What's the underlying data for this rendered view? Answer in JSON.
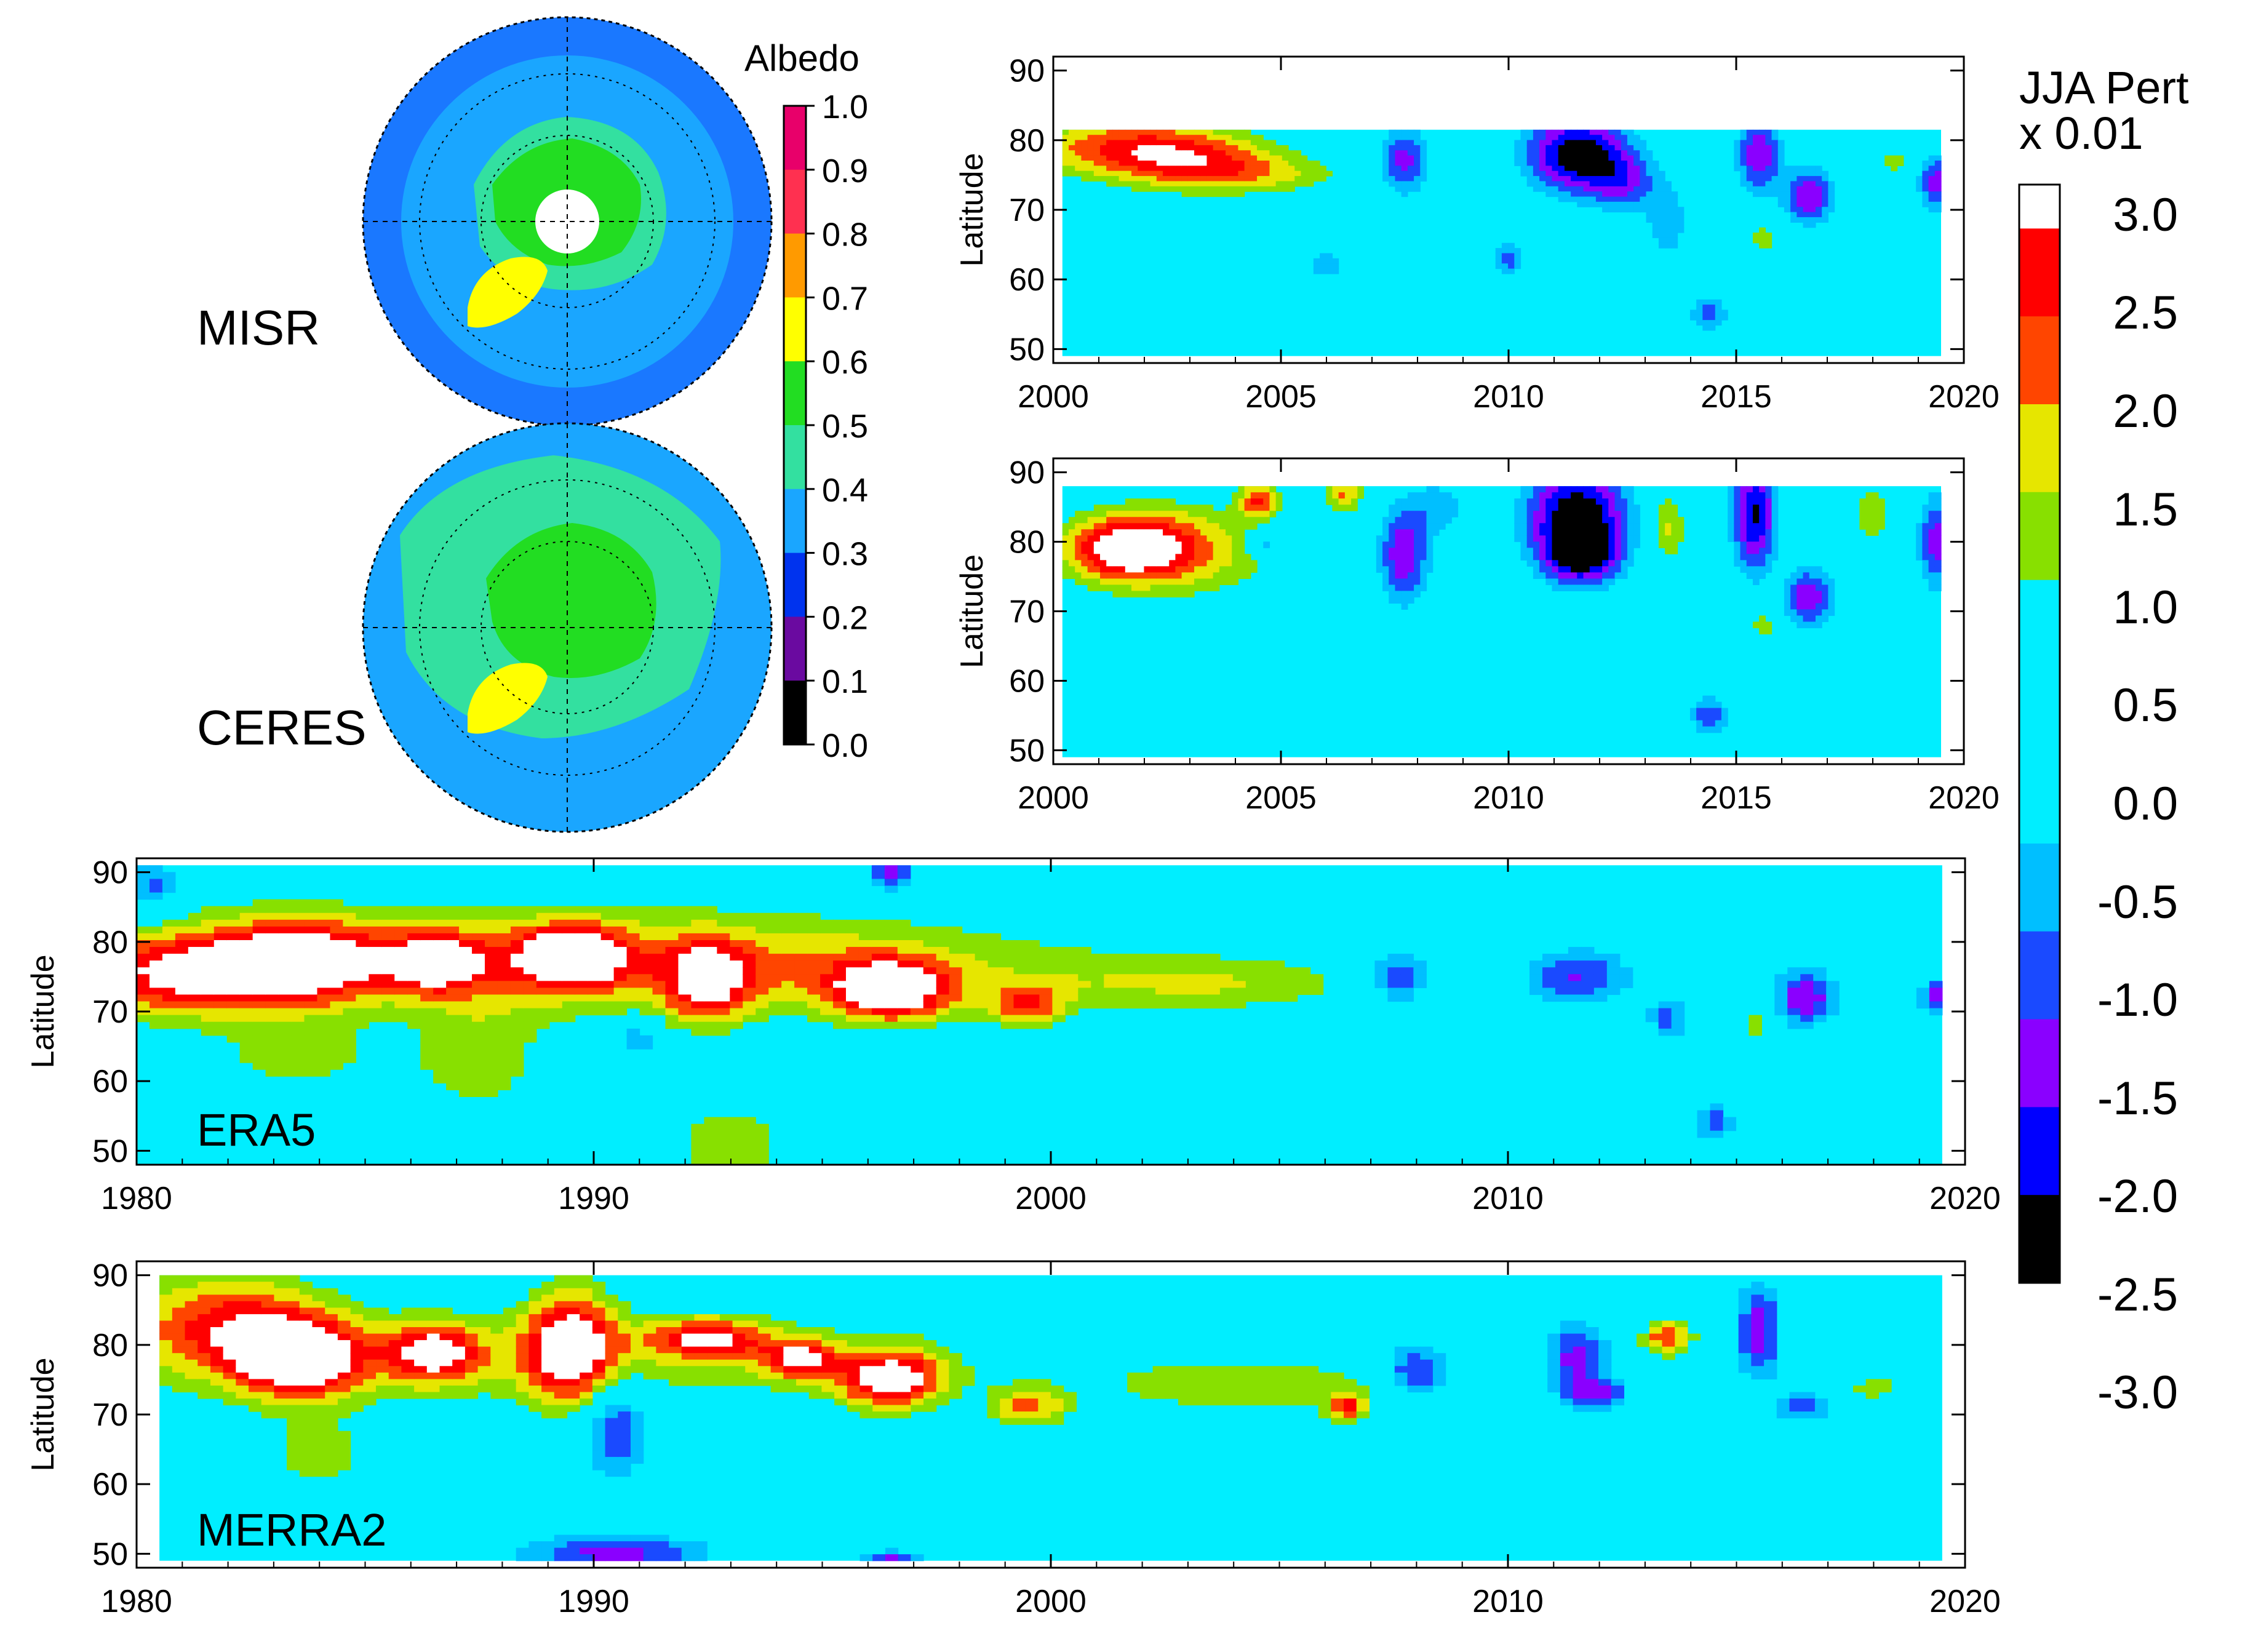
{
  "figure_colors": {
    "levels": [
      "#000000",
      "#0000ff",
      "#8b00ff",
      "#1f3fe0",
      "#00aaff",
      "#00e8ff",
      "#00e8ff",
      "#33cc33",
      "#c0e000",
      "#ff6a00",
      "#ff2020",
      "#ffffff"
    ],
    "background": "#00e8ff"
  },
  "maps": {
    "misr": {
      "label": "MISR"
    },
    "ceres": {
      "label": "CERES"
    },
    "colorbar": {
      "title": "Albedo",
      "ticks": [
        "1.0",
        "0.9",
        "0.8",
        "0.7",
        "0.6",
        "0.5",
        "0.4",
        "0.3",
        "0.2",
        "0.1",
        "0.0"
      ],
      "colors": [
        "#e8006a",
        "#ff3050",
        "#ff9a00",
        "#ffff00",
        "#22dd22",
        "#33e0a0",
        "#1aa6ff",
        "#0033ee",
        "#6a0aa0",
        "#000000"
      ]
    }
  },
  "colorbar": {
    "title_line1": "JJA Pert",
    "title_line2": "x 0.01",
    "ticks": [
      "3.0",
      "2.5",
      "2.0",
      "1.5",
      "1.0",
      "0.5",
      "0.0",
      "-0.5",
      "-1.0",
      "-1.5",
      "-2.0",
      "-2.5",
      "-3.0"
    ],
    "colors": [
      "#ffffff",
      "#ff0000",
      "#ff4500",
      "#e6e600",
      "#88e000",
      "#00eeff",
      "#00eeff",
      "#00eeff",
      "#00bfff",
      "#1a4aff",
      "#8a00ff",
      "#0000ff",
      "#000000"
    ]
  },
  "chart_data": [
    {
      "type": "heatmap",
      "name": "MISR",
      "title": "",
      "xlabel": "",
      "ylabel": "Latitude",
      "xlim": [
        2000,
        2020
      ],
      "ylim": [
        48,
        92
      ],
      "x_ticks": [
        "2000",
        "2005",
        "2010",
        "2015",
        "2020"
      ],
      "y_ticks": [
        "50",
        "60",
        "70",
        "80",
        "90"
      ],
      "data_x_range": [
        2000.2,
        2019.5
      ],
      "data_y_range": [
        49,
        81.5
      ],
      "background_level": 0.0,
      "features": [
        {
          "x": 2001.5,
          "y": 79,
          "sx": 1.6,
          "sy": 3,
          "v": 2.0
        },
        {
          "x": 2003.2,
          "y": 77,
          "sx": 1.4,
          "sy": 3,
          "v": 1.5
        },
        {
          "x": 2004.5,
          "y": 75,
          "sx": 1.5,
          "sy": 2,
          "v": 1.0
        },
        {
          "x": 2007.7,
          "y": 77,
          "sx": 0.4,
          "sy": 3.5,
          "v": -2.0
        },
        {
          "x": 2011.5,
          "y": 78,
          "sx": 0.8,
          "sy": 4,
          "v": -3.2
        },
        {
          "x": 2012.5,
          "y": 74,
          "sx": 0.5,
          "sy": 3,
          "v": -1.5
        },
        {
          "x": 2015.5,
          "y": 78,
          "sx": 0.35,
          "sy": 4,
          "v": -2.2
        },
        {
          "x": 2016.6,
          "y": 72,
          "sx": 0.4,
          "sy": 3,
          "v": -2.2
        },
        {
          "x": 2019.4,
          "y": 74,
          "sx": 0.3,
          "sy": 3,
          "v": -2.0
        },
        {
          "x": 2014.4,
          "y": 55,
          "sx": 0.3,
          "sy": 2,
          "v": -1.5
        },
        {
          "x": 2015.6,
          "y": 66,
          "sx": 0.25,
          "sy": 2,
          "v": 1.0
        },
        {
          "x": 2018.5,
          "y": 77,
          "sx": 0.3,
          "sy": 1.5,
          "v": 1.0
        },
        {
          "x": 2010.0,
          "y": 63,
          "sx": 0.25,
          "sy": 2,
          "v": -1.5
        },
        {
          "x": 2006.0,
          "y": 62,
          "sx": 0.4,
          "sy": 2,
          "v": -1.0
        },
        {
          "x": 2013.5,
          "y": 68,
          "sx": 0.4,
          "sy": 5,
          "v": -1.0
        }
      ]
    },
    {
      "type": "heatmap",
      "name": "CERES",
      "title": "",
      "xlabel": "",
      "ylabel": "Latitude",
      "xlim": [
        2000,
        2020
      ],
      "ylim": [
        48,
        92
      ],
      "x_ticks": [
        "2000",
        "2005",
        "2010",
        "2015",
        "2020"
      ],
      "y_ticks": [
        "50",
        "60",
        "70",
        "80",
        "90"
      ],
      "data_x_range": [
        2000.2,
        2019.5
      ],
      "data_y_range": [
        49,
        88
      ],
      "background_level": 0.0,
      "features": [
        {
          "x": 2001.6,
          "y": 79,
          "sx": 1.0,
          "sy": 3.5,
          "v": 3.1
        },
        {
          "x": 2003.2,
          "y": 79,
          "sx": 1.4,
          "sy": 5,
          "v": 1.3
        },
        {
          "x": 2004.5,
          "y": 86,
          "sx": 0.3,
          "sy": 2,
          "v": 2.0
        },
        {
          "x": 2006.4,
          "y": 87,
          "sx": 0.3,
          "sy": 2,
          "v": 1.8
        },
        {
          "x": 2007.7,
          "y": 78,
          "sx": 0.4,
          "sy": 5,
          "v": -2.2
        },
        {
          "x": 2011.5,
          "y": 84,
          "sx": 0.8,
          "sy": 5,
          "v": -3.2
        },
        {
          "x": 2011.6,
          "y": 78,
          "sx": 0.6,
          "sy": 3,
          "v": -2.5
        },
        {
          "x": 2015.4,
          "y": 84,
          "sx": 0.35,
          "sy": 6,
          "v": -2.8
        },
        {
          "x": 2016.6,
          "y": 72,
          "sx": 0.4,
          "sy": 3,
          "v": -2.2
        },
        {
          "x": 2019.4,
          "y": 80,
          "sx": 0.3,
          "sy": 5,
          "v": -2.0
        },
        {
          "x": 2014.4,
          "y": 55,
          "sx": 0.3,
          "sy": 2,
          "v": -1.7
        },
        {
          "x": 2013.5,
          "y": 82,
          "sx": 0.3,
          "sy": 4,
          "v": 1.4
        },
        {
          "x": 2015.6,
          "y": 68,
          "sx": 0.25,
          "sy": 2,
          "v": 1.1
        },
        {
          "x": 2018.0,
          "y": 84,
          "sx": 0.3,
          "sy": 3,
          "v": 1.2
        },
        {
          "x": 2008.5,
          "y": 85,
          "sx": 0.5,
          "sy": 3,
          "v": -1.0
        },
        {
          "x": 2004.7,
          "y": 80,
          "sx": 0.3,
          "sy": 1.5,
          "v": -1.6
        }
      ]
    },
    {
      "type": "heatmap",
      "name": "ERA5",
      "title": "",
      "xlabel": "",
      "ylabel": "Latitude",
      "xlim": [
        1980,
        2020
      ],
      "ylim": [
        48,
        92
      ],
      "x_ticks": [
        "1980",
        "1990",
        "2000",
        "2010",
        "2020"
      ],
      "y_ticks": [
        "50",
        "60",
        "70",
        "80",
        "90"
      ],
      "data_x_range": [
        1980,
        2019.5
      ],
      "data_y_range": [
        48,
        91
      ],
      "background_level": 0.0,
      "features": [
        {
          "x": 1981.0,
          "y": 75,
          "sx": 1.5,
          "sy": 4,
          "v": 2.2
        },
        {
          "x": 1983.5,
          "y": 77,
          "sx": 1.2,
          "sy": 4,
          "v": 2.8
        },
        {
          "x": 1986.5,
          "y": 77,
          "sx": 0.8,
          "sy": 3,
          "v": 2.2
        },
        {
          "x": 1989.5,
          "y": 78,
          "sx": 0.8,
          "sy": 3,
          "v": 2.9
        },
        {
          "x": 1992.5,
          "y": 74,
          "sx": 0.6,
          "sy": 4,
          "v": 2.2
        },
        {
          "x": 1996.5,
          "y": 73,
          "sx": 0.9,
          "sy": 3,
          "v": 3.0
        },
        {
          "x": 1999.5,
          "y": 71,
          "sx": 0.6,
          "sy": 2,
          "v": 1.8
        },
        {
          "x": 1986.0,
          "y": 78,
          "sx": 8.0,
          "sy": 6,
          "v": 1.2
        },
        {
          "x": 1994.0,
          "y": 76,
          "sx": 5.0,
          "sy": 5,
          "v": 1.1
        },
        {
          "x": 1993.0,
          "y": 51,
          "sx": 1.0,
          "sy": 4,
          "v": 1.2
        },
        {
          "x": 1987.5,
          "y": 63,
          "sx": 1.0,
          "sy": 6,
          "v": 1.1
        },
        {
          "x": 1983.5,
          "y": 63,
          "sx": 1.5,
          "sy": 4,
          "v": 0.9
        },
        {
          "x": 2003.5,
          "y": 74,
          "sx": 2.5,
          "sy": 3,
          "v": 1.1
        },
        {
          "x": 2007.6,
          "y": 75,
          "sx": 0.5,
          "sy": 3,
          "v": -1.8
        },
        {
          "x": 2011.5,
          "y": 75,
          "sx": 0.9,
          "sy": 3,
          "v": -1.8
        },
        {
          "x": 2016.5,
          "y": 72,
          "sx": 0.5,
          "sy": 3,
          "v": -2.2
        },
        {
          "x": 1996.5,
          "y": 90,
          "sx": 0.4,
          "sy": 2,
          "v": -2.0
        },
        {
          "x": 2014.5,
          "y": 54,
          "sx": 0.3,
          "sy": 2,
          "v": -1.6
        },
        {
          "x": 2013.5,
          "y": 69,
          "sx": 0.3,
          "sy": 2,
          "v": -1.6
        },
        {
          "x": 2015.5,
          "y": 68,
          "sx": 0.3,
          "sy": 2,
          "v": 1.2
        },
        {
          "x": 1980.4,
          "y": 88,
          "sx": 0.4,
          "sy": 3,
          "v": -1.6
        },
        {
          "x": 1991.0,
          "y": 66,
          "sx": 0.3,
          "sy": 2,
          "v": -1.5
        },
        {
          "x": 2019.4,
          "y": 72,
          "sx": 0.3,
          "sy": 2,
          "v": -2.0
        }
      ]
    },
    {
      "type": "heatmap",
      "name": "MERRA2",
      "title": "",
      "xlabel": "",
      "ylabel": "Latitude",
      "xlim": [
        1980,
        2020
      ],
      "ylim": [
        48,
        92
      ],
      "x_ticks": [
        "1980",
        "1990",
        "2000",
        "2010",
        "2020"
      ],
      "y_ticks": [
        "50",
        "60",
        "70",
        "80",
        "90"
      ],
      "data_x_range": [
        1980.5,
        2019.5
      ],
      "data_y_range": [
        49,
        90
      ],
      "background_level": 0.0,
      "features": [
        {
          "x": 1982.0,
          "y": 84,
          "sx": 1.5,
          "sy": 5,
          "v": 2.0
        },
        {
          "x": 1983.5,
          "y": 78,
          "sx": 1.0,
          "sy": 4,
          "v": 3.0
        },
        {
          "x": 1986.5,
          "y": 79,
          "sx": 0.7,
          "sy": 3,
          "v": 2.4
        },
        {
          "x": 1989.5,
          "y": 80,
          "sx": 0.7,
          "sy": 6,
          "v": 2.8
        },
        {
          "x": 1992.5,
          "y": 81,
          "sx": 0.9,
          "sy": 2,
          "v": 2.4
        },
        {
          "x": 1994.5,
          "y": 78,
          "sx": 0.6,
          "sy": 2,
          "v": 2.3
        },
        {
          "x": 1996.5,
          "y": 75,
          "sx": 0.8,
          "sy": 3,
          "v": 3.0
        },
        {
          "x": 1999.5,
          "y": 71,
          "sx": 0.6,
          "sy": 2,
          "v": 1.8
        },
        {
          "x": 1990.5,
          "y": 68,
          "sx": 0.5,
          "sy": 5,
          "v": -2.0
        },
        {
          "x": 1990.5,
          "y": 50,
          "sx": 1.5,
          "sy": 2,
          "v": -2.0
        },
        {
          "x": 1996.5,
          "y": 49,
          "sx": 0.5,
          "sy": 1,
          "v": -2.0
        },
        {
          "x": 1988.0,
          "y": 78,
          "sx": 8.0,
          "sy": 5,
          "v": 1.1
        },
        {
          "x": 1984.0,
          "y": 64,
          "sx": 1.0,
          "sy": 4,
          "v": 1.0
        },
        {
          "x": 2004.5,
          "y": 74,
          "sx": 2.5,
          "sy": 3,
          "v": 1.1
        },
        {
          "x": 2008.0,
          "y": 76,
          "sx": 0.6,
          "sy": 3,
          "v": -2.0
        },
        {
          "x": 2011.5,
          "y": 78,
          "sx": 0.5,
          "sy": 4,
          "v": -2.0
        },
        {
          "x": 2013.5,
          "y": 81,
          "sx": 0.4,
          "sy": 2,
          "v": 2.2
        },
        {
          "x": 2015.5,
          "y": 82,
          "sx": 0.35,
          "sy": 5,
          "v": -2.2
        },
        {
          "x": 2016.5,
          "y": 71,
          "sx": 0.5,
          "sy": 1.5,
          "v": -1.6
        },
        {
          "x": 2012.0,
          "y": 73,
          "sx": 0.5,
          "sy": 1.5,
          "v": -1.6
        },
        {
          "x": 2018.0,
          "y": 74,
          "sx": 0.4,
          "sy": 1.5,
          "v": 1.1
        },
        {
          "x": 2006.5,
          "y": 71,
          "sx": 0.3,
          "sy": 1.5,
          "v": 2.0
        }
      ]
    }
  ]
}
